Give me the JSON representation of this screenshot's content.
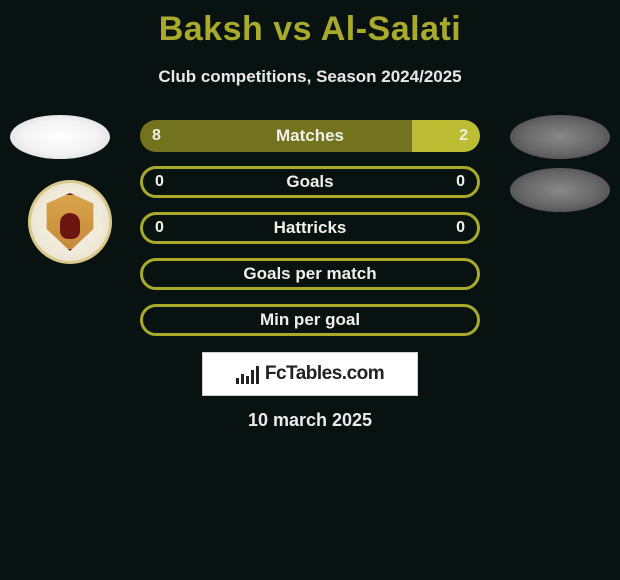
{
  "title": "Baksh vs Al-Salati",
  "subtitle": "Club competitions, Season 2024/2025",
  "date": "10 march 2025",
  "colors": {
    "background": "#081210",
    "accent": "#a9a92a",
    "text_light": "#f0f0e8",
    "bar_border": "#a9a92a",
    "left_fill": "#72721f",
    "right_fill": "#bdbd33",
    "white": "#ffffff"
  },
  "fctables": {
    "label": "FcTables.com",
    "icon_bars": [
      6,
      10,
      8,
      14,
      18
    ]
  },
  "stats": [
    {
      "label": "Matches",
      "left_value": "8",
      "right_value": "2",
      "left_pct": 80,
      "right_pct": 20,
      "filled": true
    },
    {
      "label": "Goals",
      "left_value": "0",
      "right_value": "0",
      "left_pct": 0,
      "right_pct": 0,
      "filled": false
    },
    {
      "label": "Hattricks",
      "left_value": "0",
      "right_value": "0",
      "left_pct": 0,
      "right_pct": 0,
      "filled": false
    },
    {
      "label": "Goals per match",
      "left_value": "",
      "right_value": "",
      "left_pct": 0,
      "right_pct": 0,
      "filled": false
    },
    {
      "label": "Min per goal",
      "left_value": "",
      "right_value": "",
      "left_pct": 0,
      "right_pct": 0,
      "filled": false
    }
  ]
}
